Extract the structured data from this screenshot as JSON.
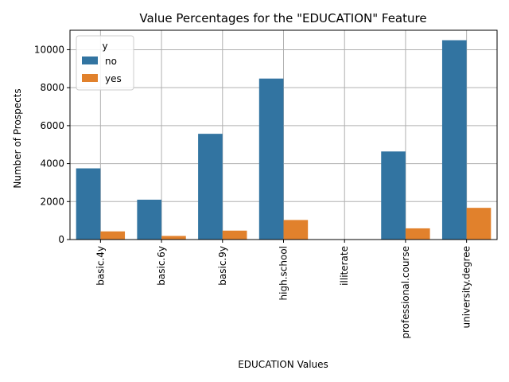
{
  "chart_data": {
    "type": "bar",
    "title": "Value Percentages for the \"EDUCATION\" Feature",
    "xlabel": "EDUCATION Values",
    "ylabel": "Number of Prospects",
    "categories": [
      "basic.4y",
      "basic.6y",
      "basic.9y",
      "high.school",
      "illiterate",
      "professional.course",
      "university.degree"
    ],
    "series": [
      {
        "name": "no",
        "color": "#3274a1",
        "values": [
          3750,
          2100,
          5570,
          8480,
          14,
          4640,
          10500
        ]
      },
      {
        "name": "yes",
        "color": "#e1812c",
        "values": [
          430,
          190,
          470,
          1030,
          4,
          590,
          1670
        ]
      }
    ],
    "ylim": [
      0,
      11025
    ],
    "yticks": [
      0,
      2000,
      4000,
      6000,
      8000,
      10000
    ],
    "grid": true,
    "legend": {
      "title": "y",
      "placement": "top-left"
    }
  }
}
